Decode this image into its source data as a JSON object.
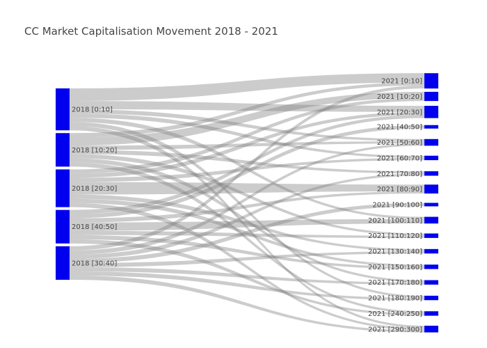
{
  "chart_data": {
    "type": "sankey",
    "title": "CC Market Capitalisation Movement 2018 - 2021",
    "colors": {
      "node": "#0000ee",
      "link": "rgba(128,128,128,0.4)",
      "text": "#444444"
    },
    "source_nodes": [
      {
        "label": "2018 [0:10]"
      },
      {
        "label": "2018 [10:20]"
      },
      {
        "label": "2018 [20:30]"
      },
      {
        "label": "2018 [40:50]"
      },
      {
        "label": "2018 [30:40]"
      }
    ],
    "target_nodes": [
      {
        "label": "2021 [0:10]"
      },
      {
        "label": "2021 [10:20]"
      },
      {
        "label": "2021 [20:30]"
      },
      {
        "label": "2021 [40:50]"
      },
      {
        "label": "2021 [50:60]"
      },
      {
        "label": "2021 [60:70]"
      },
      {
        "label": "2021 [70:80]"
      },
      {
        "label": "2021 [80:90]"
      },
      {
        "label": "2021 [90:100]"
      },
      {
        "label": "2021 [100:110]"
      },
      {
        "label": "2021 [110:120]"
      },
      {
        "label": "2021 [130:140]"
      },
      {
        "label": "2021 [150:160]"
      },
      {
        "label": "2021 [170:180]"
      },
      {
        "label": "2021 [180:190]"
      },
      {
        "label": "2021 [240:250]"
      },
      {
        "label": "2021 [290:300]"
      }
    ],
    "links": [
      {
        "source": 0,
        "target": 0,
        "value": 3
      },
      {
        "source": 0,
        "target": 2,
        "value": 2
      },
      {
        "source": 0,
        "target": 5,
        "value": 1
      },
      {
        "source": 0,
        "target": 9,
        "value": 1
      },
      {
        "source": 0,
        "target": 14,
        "value": 1
      },
      {
        "source": 0,
        "target": 16,
        "value": 1
      },
      {
        "source": 0,
        "target": 4,
        "value": 1
      },
      {
        "source": 1,
        "target": 0,
        "value": 1
      },
      {
        "source": 1,
        "target": 1,
        "value": 2
      },
      {
        "source": 1,
        "target": 4,
        "value": 1
      },
      {
        "source": 1,
        "target": 6,
        "value": 1
      },
      {
        "source": 1,
        "target": 10,
        "value": 1
      },
      {
        "source": 1,
        "target": 13,
        "value": 1
      },
      {
        "source": 1,
        "target": 15,
        "value": 1
      },
      {
        "source": 2,
        "target": 1,
        "value": 1
      },
      {
        "source": 2,
        "target": 2,
        "value": 1
      },
      {
        "source": 2,
        "target": 5,
        "value": 1
      },
      {
        "source": 2,
        "target": 7,
        "value": 3
      },
      {
        "source": 2,
        "target": 11,
        "value": 1
      },
      {
        "source": 2,
        "target": 12,
        "value": 1
      },
      {
        "source": 2,
        "target": 16,
        "value": 1
      },
      {
        "source": 3,
        "target": 2,
        "value": 1
      },
      {
        "source": 3,
        "target": 3,
        "value": 1
      },
      {
        "source": 3,
        "target": 7,
        "value": 1
      },
      {
        "source": 3,
        "target": 9,
        "value": 2
      },
      {
        "source": 3,
        "target": 10,
        "value": 1
      },
      {
        "source": 3,
        "target": 12,
        "value": 1
      },
      {
        "source": 3,
        "target": 15,
        "value": 1
      },
      {
        "source": 4,
        "target": 0,
        "value": 1
      },
      {
        "source": 4,
        "target": 4,
        "value": 1
      },
      {
        "source": 4,
        "target": 6,
        "value": 1
      },
      {
        "source": 4,
        "target": 8,
        "value": 1
      },
      {
        "source": 4,
        "target": 11,
        "value": 1
      },
      {
        "source": 4,
        "target": 13,
        "value": 1
      },
      {
        "source": 4,
        "target": 14,
        "value": 1
      },
      {
        "source": 4,
        "target": 16,
        "value": 1
      }
    ]
  }
}
